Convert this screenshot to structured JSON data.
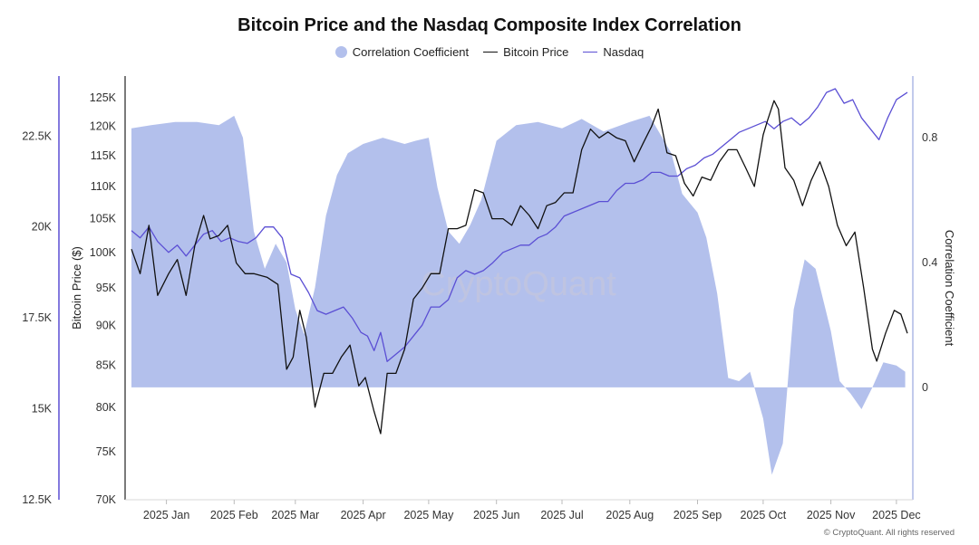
{
  "chart_data": {
    "type": "line",
    "title": "Bitcoin Price and the Nasdaq Composite Index Correlation",
    "legend": [
      "Correlation Coefficient",
      "Bitcoin Price",
      "Nasdaq"
    ],
    "legend_position": "top-center",
    "colors": {
      "correlation": "#b3c0ec",
      "bitcoin": "#111111",
      "nasdaq": "#5b4fd4",
      "left_axis_line": "#5b4fd4",
      "right_axis_line": "#aeb8e6"
    },
    "x_ticks": [
      "2025 Jan",
      "2025 Feb",
      "2025 Mar",
      "2025 Apr",
      "2025 May",
      "2025 Jun",
      "2025 Jul",
      "2025 Aug",
      "2025 Sep",
      "2025 Oct",
      "2025 Nov",
      "2025 Dec"
    ],
    "nasdaq_axis": {
      "ticks": [
        "12.5K",
        "15K",
        "17.5K",
        "20K",
        "22.5K"
      ],
      "range": [
        12500,
        24000
      ]
    },
    "bitcoin_axis": {
      "label": "Bitcoin Price ($)",
      "scale": "log",
      "ticks": [
        "70K",
        "75K",
        "80K",
        "85K",
        "90K",
        "95K",
        "100K",
        "105K",
        "110K",
        "115K",
        "120K",
        "125K"
      ],
      "range": [
        70000,
        128000
      ]
    },
    "correlation_axis": {
      "label": "Correlation Coefficient",
      "ticks": [
        "0",
        "0.4",
        "0.8"
      ],
      "range": [
        -0.36,
        0.98
      ]
    },
    "grid": false,
    "series": [
      {
        "name": "Correlation Coefficient",
        "type": "area",
        "x": [
          "2024-12-16",
          "2024-12-25",
          "2025-01-05",
          "2025-01-15",
          "2025-01-25",
          "2025-02-01",
          "2025-02-05",
          "2025-02-10",
          "2025-02-15",
          "2025-02-20",
          "2025-02-25",
          "2025-03-01",
          "2025-03-05",
          "2025-03-10",
          "2025-03-15",
          "2025-03-20",
          "2025-03-25",
          "2025-04-01",
          "2025-04-10",
          "2025-04-20",
          "2025-04-25",
          "2025-05-01",
          "2025-05-05",
          "2025-05-10",
          "2025-05-15",
          "2025-05-20",
          "2025-05-25",
          "2025-06-01",
          "2025-06-10",
          "2025-06-20",
          "2025-07-01",
          "2025-07-10",
          "2025-07-20",
          "2025-08-01",
          "2025-08-10",
          "2025-08-20",
          "2025-08-25",
          "2025-09-01",
          "2025-09-05",
          "2025-09-10",
          "2025-09-15",
          "2025-09-20",
          "2025-09-25",
          "2025-10-01",
          "2025-10-05",
          "2025-10-10",
          "2025-10-15",
          "2025-10-20",
          "2025-10-25",
          "2025-11-01",
          "2025-11-05",
          "2025-11-10",
          "2025-11-15",
          "2025-11-20",
          "2025-11-25",
          "2025-12-01",
          "2025-12-05"
        ],
        "values": [
          0.83,
          0.84,
          0.85,
          0.85,
          0.84,
          0.87,
          0.8,
          0.5,
          0.38,
          0.46,
          0.4,
          0.25,
          0.17,
          0.32,
          0.55,
          0.68,
          0.75,
          0.78,
          0.8,
          0.78,
          0.79,
          0.8,
          0.64,
          0.5,
          0.46,
          0.52,
          0.6,
          0.79,
          0.84,
          0.85,
          0.83,
          0.86,
          0.82,
          0.85,
          0.87,
          0.75,
          0.62,
          0.56,
          0.48,
          0.3,
          0.03,
          0.02,
          0.05,
          -0.1,
          -0.28,
          -0.18,
          0.25,
          0.41,
          0.38,
          0.18,
          0.02,
          -0.02,
          -0.07,
          0.0,
          0.08,
          0.07,
          0.05
        ]
      },
      {
        "name": "Bitcoin Price",
        "type": "line",
        "x": [
          "2024-12-16",
          "2024-12-20",
          "2024-12-24",
          "2024-12-28",
          "2025-01-02",
          "2025-01-06",
          "2025-01-10",
          "2025-01-14",
          "2025-01-18",
          "2025-01-21",
          "2025-01-25",
          "2025-01-29",
          "2025-02-02",
          "2025-02-06",
          "2025-02-10",
          "2025-02-16",
          "2025-02-21",
          "2025-02-25",
          "2025-02-28",
          "2025-03-03",
          "2025-03-06",
          "2025-03-10",
          "2025-03-14",
          "2025-03-18",
          "2025-03-22",
          "2025-03-26",
          "2025-03-30",
          "2025-04-02",
          "2025-04-06",
          "2025-04-09",
          "2025-04-12",
          "2025-04-16",
          "2025-04-20",
          "2025-04-24",
          "2025-04-28",
          "2025-05-02",
          "2025-05-06",
          "2025-05-10",
          "2025-05-14",
          "2025-05-18",
          "2025-05-22",
          "2025-05-26",
          "2025-05-30",
          "2025-06-04",
          "2025-06-08",
          "2025-06-12",
          "2025-06-16",
          "2025-06-20",
          "2025-06-24",
          "2025-06-28",
          "2025-07-02",
          "2025-07-06",
          "2025-07-10",
          "2025-07-14",
          "2025-07-18",
          "2025-07-22",
          "2025-07-26",
          "2025-07-30",
          "2025-08-03",
          "2025-08-07",
          "2025-08-11",
          "2025-08-14",
          "2025-08-18",
          "2025-08-22",
          "2025-08-26",
          "2025-08-30",
          "2025-09-03",
          "2025-09-07",
          "2025-09-11",
          "2025-09-15",
          "2025-09-19",
          "2025-09-23",
          "2025-09-27",
          "2025-10-01",
          "2025-10-03",
          "2025-10-06",
          "2025-10-08",
          "2025-10-11",
          "2025-10-15",
          "2025-10-19",
          "2025-10-23",
          "2025-10-27",
          "2025-10-31",
          "2025-11-04",
          "2025-11-08",
          "2025-11-12",
          "2025-11-16",
          "2025-11-20",
          "2025-11-22",
          "2025-11-26",
          "2025-11-30",
          "2025-12-03",
          "2025-12-06"
        ],
        "values": [
          100500,
          97000,
          104000,
          94000,
          97000,
          99000,
          94000,
          101000,
          105500,
          102000,
          102500,
          104000,
          98500,
          97000,
          97000,
          96500,
          95500,
          84500,
          86000,
          92000,
          88500,
          80000,
          84000,
          84000,
          86000,
          87500,
          82500,
          83500,
          79500,
          77000,
          84000,
          84000,
          87000,
          93500,
          95000,
          97000,
          97000,
          103500,
          103500,
          104000,
          109500,
          109000,
          105000,
          105000,
          104000,
          107000,
          105500,
          103500,
          107000,
          107500,
          109000,
          109000,
          116000,
          119500,
          118000,
          119000,
          118000,
          117500,
          114000,
          117000,
          120000,
          123000,
          115500,
          115000,
          110500,
          108500,
          111500,
          111000,
          114000,
          116000,
          116000,
          113000,
          110000,
          118500,
          121000,
          124500,
          123000,
          113000,
          111000,
          107000,
          111000,
          114000,
          110000,
          104000,
          101000,
          103000,
          95000,
          87000,
          85500,
          89000,
          92000,
          91500,
          89000
        ]
      },
      {
        "name": "Nasdaq",
        "type": "line",
        "x": [
          "2024-12-16",
          "2024-12-20",
          "2024-12-24",
          "2024-12-28",
          "2025-01-02",
          "2025-01-06",
          "2025-01-10",
          "2025-01-14",
          "2025-01-18",
          "2025-01-22",
          "2025-01-26",
          "2025-01-30",
          "2025-02-03",
          "2025-02-07",
          "2025-02-11",
          "2025-02-15",
          "2025-02-19",
          "2025-02-23",
          "2025-02-27",
          "2025-03-03",
          "2025-03-07",
          "2025-03-11",
          "2025-03-15",
          "2025-03-19",
          "2025-03-23",
          "2025-03-27",
          "2025-03-31",
          "2025-04-03",
          "2025-04-06",
          "2025-04-09",
          "2025-04-12",
          "2025-04-16",
          "2025-04-20",
          "2025-04-24",
          "2025-04-28",
          "2025-05-02",
          "2025-05-06",
          "2025-05-10",
          "2025-05-14",
          "2025-05-18",
          "2025-05-22",
          "2025-05-26",
          "2025-05-30",
          "2025-06-04",
          "2025-06-08",
          "2025-06-12",
          "2025-06-16",
          "2025-06-20",
          "2025-06-24",
          "2025-06-28",
          "2025-07-02",
          "2025-07-06",
          "2025-07-10",
          "2025-07-14",
          "2025-07-18",
          "2025-07-22",
          "2025-07-26",
          "2025-07-30",
          "2025-08-03",
          "2025-08-07",
          "2025-08-11",
          "2025-08-15",
          "2025-08-19",
          "2025-08-23",
          "2025-08-27",
          "2025-08-31",
          "2025-09-04",
          "2025-09-08",
          "2025-09-12",
          "2025-09-16",
          "2025-09-20",
          "2025-09-24",
          "2025-09-28",
          "2025-10-02",
          "2025-10-06",
          "2025-10-10",
          "2025-10-14",
          "2025-10-18",
          "2025-10-22",
          "2025-10-26",
          "2025-10-30",
          "2025-11-03",
          "2025-11-07",
          "2025-11-11",
          "2025-11-15",
          "2025-11-19",
          "2025-11-23",
          "2025-11-27",
          "2025-12-01",
          "2025-12-06"
        ],
        "values": [
          19900,
          19700,
          20000,
          19600,
          19300,
          19500,
          19200,
          19500,
          19800,
          19900,
          19600,
          19700,
          19600,
          19550,
          19700,
          20000,
          20000,
          19700,
          18700,
          18600,
          18200,
          17700,
          17600,
          17700,
          17800,
          17500,
          17100,
          17000,
          16600,
          17100,
          16300,
          16500,
          16700,
          17000,
          17300,
          17800,
          17800,
          18000,
          18600,
          18800,
          18700,
          18800,
          19000,
          19300,
          19400,
          19500,
          19500,
          19700,
          19800,
          20000,
          20300,
          20400,
          20500,
          20600,
          20700,
          20700,
          21000,
          21200,
          21200,
          21300,
          21500,
          21500,
          21400,
          21400,
          21600,
          21700,
          21900,
          22000,
          22200,
          22400,
          22600,
          22700,
          22800,
          22900,
          22700,
          22900,
          23000,
          22800,
          23000,
          23300,
          23700,
          23800,
          23400,
          23500,
          23000,
          22700,
          22400,
          23000,
          23500,
          23700
        ]
      }
    ]
  },
  "watermark": "CryptoQuant",
  "copyright": "© CryptoQuant. All rights reserved"
}
